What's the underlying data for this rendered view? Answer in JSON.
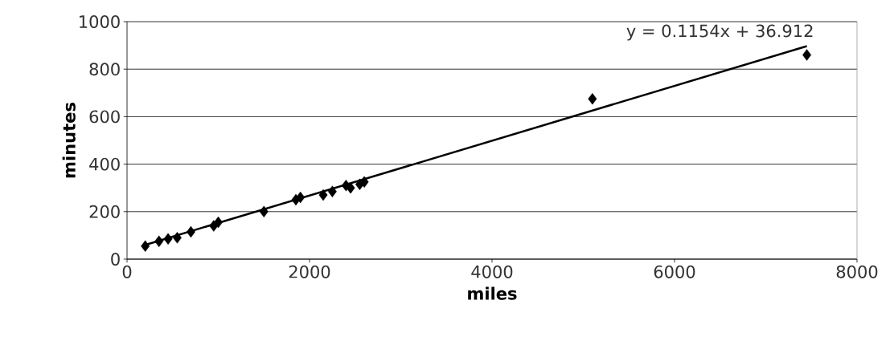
{
  "chart_data": {
    "type": "scatter",
    "xlabel": "miles",
    "ylabel": "minutes",
    "xlim": [
      0,
      8000
    ],
    "xticks": [
      0,
      2000,
      4000,
      6000,
      8000
    ],
    "ylim": [
      0,
      1000
    ],
    "yticks": [
      0,
      200,
      400,
      600,
      800,
      1000
    ],
    "grid": "y",
    "marker": "diamond",
    "annotations": [
      "y = 0.1154x + 36.912"
    ],
    "series": [
      {
        "color": "#000000",
        "x": [
          200,
          350,
          450,
          550,
          700,
          950,
          1000,
          1500,
          1850,
          1900,
          2150,
          2250,
          2400,
          2450,
          2550,
          2600,
          5100,
          7450
        ],
        "values": [
          55,
          75,
          85,
          90,
          115,
          140,
          155,
          200,
          250,
          260,
          270,
          285,
          310,
          300,
          315,
          325,
          675,
          860
        ]
      },
      {
        "type": "line",
        "color": "#000000",
        "marker": "none",
        "line_style": "solid",
        "x": [
          200,
          7450
        ],
        "values": [
          60,
          897
        ]
      }
    ]
  }
}
